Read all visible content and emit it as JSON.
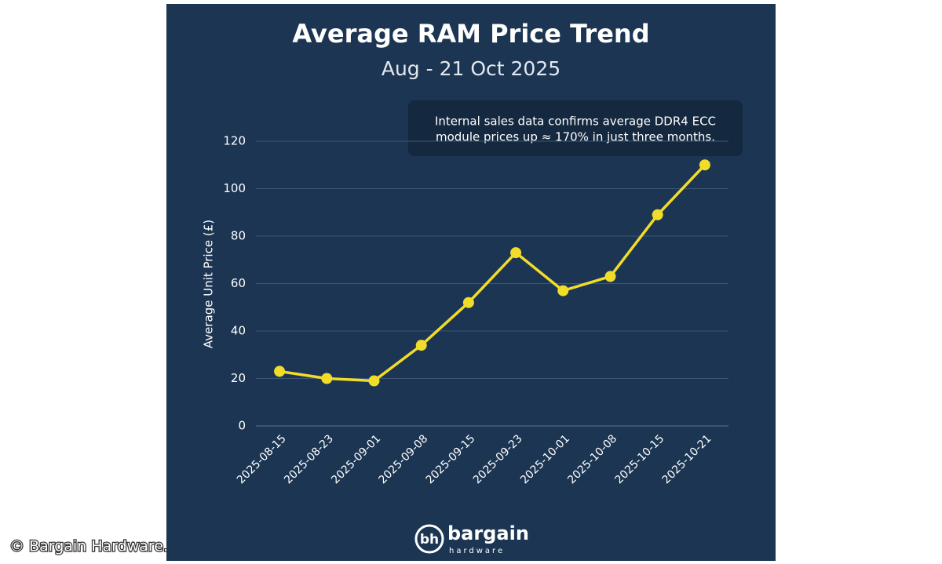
{
  "chart_data": {
    "type": "line",
    "title": "Average RAM Price Trend",
    "subtitle": "Aug - 21 Oct 2025",
    "annotation": [
      "Internal sales data confirms average DDR4 ECC",
      "module prices up ≈ 170% in just three months."
    ],
    "y_label": "Average Unit Price (£)",
    "categories": [
      "2025-08-15",
      "2025-08-23",
      "2025-09-01",
      "2025-09-08",
      "2025-09-15",
      "2025-09-23",
      "2025-10-01",
      "2025-10-08",
      "2025-10-15",
      "2025-10-21"
    ],
    "values": [
      23,
      20,
      19,
      34,
      52,
      73,
      57,
      63,
      89,
      110
    ],
    "color": "#f2dc2a",
    "ylim": [
      0,
      120
    ],
    "yticks": [
      0,
      20,
      40,
      60,
      80,
      100,
      120
    ],
    "grid": true
  },
  "logo": {
    "mark": "bh",
    "name": "bargain",
    "tagline": "hardware"
  },
  "watermark": "© Bargain Hardware."
}
